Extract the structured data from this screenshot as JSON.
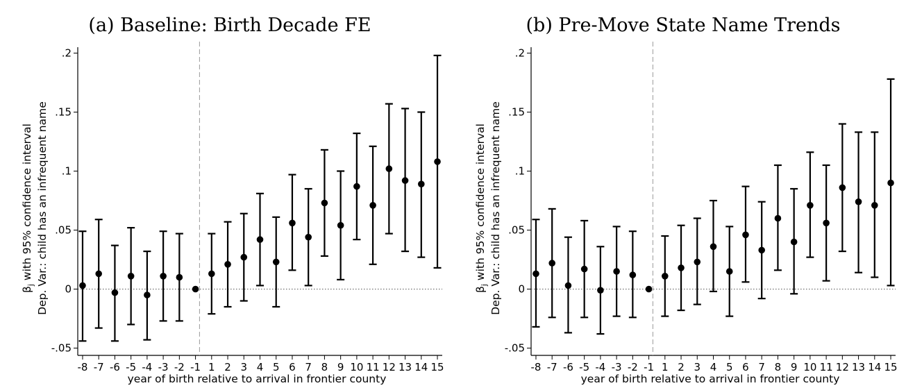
{
  "chart_data": [
    {
      "type": "scatter",
      "title": "(a) Baseline: Birth Decade FE",
      "xlabel": "year of birth relative to arrival in frontier county",
      "ylabel_line1": "β",
      "ylabel_sub": "j",
      "ylabel_line1_rest": " with 95% confidence interval",
      "ylabel_line2": "Dep. Var.: child has an infrequent name",
      "ylim": [
        -0.055,
        0.205
      ],
      "yticks": [
        -0.05,
        0,
        0.05,
        0.1,
        0.15,
        0.2
      ],
      "ytick_labels": [
        "-.05",
        "0",
        ".05",
        ".1",
        ".15",
        ".2"
      ],
      "x": [
        -8,
        -7,
        -6,
        -5,
        -4,
        -3,
        -2,
        -1,
        1,
        2,
        3,
        4,
        5,
        6,
        7,
        8,
        9,
        10,
        11,
        12,
        13,
        14,
        15
      ],
      "x_labels": [
        "-8",
        "-7",
        "-6",
        "-5",
        "-4",
        "-3",
        "-2",
        "-1",
        "1",
        "2",
        "3",
        "4",
        "5",
        "6",
        "7",
        "8",
        "9",
        "10",
        "11",
        "12",
        "13",
        "14",
        "15"
      ],
      "y": [
        0.003,
        0.013,
        -0.003,
        0.011,
        -0.005,
        0.011,
        0.01,
        0.0,
        0.013,
        0.021,
        0.027,
        0.042,
        0.023,
        0.056,
        0.044,
        0.073,
        0.054,
        0.087,
        0.071,
        0.102,
        0.092,
        0.089,
        0.108
      ],
      "ci_low": [
        -0.044,
        -0.033,
        -0.044,
        -0.03,
        -0.043,
        -0.027,
        -0.027,
        0.0,
        -0.021,
        -0.015,
        -0.01,
        0.003,
        -0.015,
        0.016,
        0.003,
        0.028,
        0.008,
        0.042,
        0.021,
        0.047,
        0.032,
        0.027,
        0.018
      ],
      "ci_high": [
        0.049,
        0.059,
        0.037,
        0.052,
        0.032,
        0.049,
        0.047,
        0.0,
        0.047,
        0.057,
        0.064,
        0.081,
        0.061,
        0.097,
        0.085,
        0.118,
        0.1,
        0.132,
        0.121,
        0.157,
        0.153,
        0.15,
        0.198
      ],
      "reference_line_x": -0.5,
      "zero_line": true,
      "grid": false
    },
    {
      "type": "scatter",
      "title": "(b) Pre-Move State Name Trends",
      "xlabel": "year of birth relative to arrival in frontier county",
      "ylabel_line1": "β",
      "ylabel_sub": "j",
      "ylabel_line1_rest": " with 95% confidence interval",
      "ylabel_line2": "Dep. Var.: child has an infrequent name",
      "ylim": [
        -0.055,
        0.205
      ],
      "yticks": [
        -0.05,
        0,
        0.05,
        0.1,
        0.15,
        0.2
      ],
      "ytick_labels": [
        "-.05",
        "0",
        ".05",
        ".1",
        ".15",
        ".2"
      ],
      "x": [
        -8,
        -7,
        -6,
        -5,
        -4,
        -3,
        -2,
        -1,
        1,
        2,
        3,
        4,
        5,
        6,
        7,
        8,
        9,
        10,
        11,
        12,
        13,
        14,
        15
      ],
      "x_labels": [
        "-8",
        "-7",
        "-6",
        "-5",
        "-4",
        "-3",
        "-2",
        "-1",
        "1",
        "2",
        "3",
        "4",
        "5",
        "6",
        "7",
        "8",
        "9",
        "10",
        "11",
        "12",
        "13",
        "14",
        "15"
      ],
      "y": [
        0.013,
        0.022,
        0.003,
        0.017,
        -0.001,
        0.015,
        0.012,
        0.0,
        0.011,
        0.018,
        0.023,
        0.036,
        0.015,
        0.046,
        0.033,
        0.06,
        0.04,
        0.071,
        0.056,
        0.086,
        0.074,
        0.071,
        0.09
      ],
      "ci_low": [
        -0.032,
        -0.024,
        -0.037,
        -0.024,
        -0.038,
        -0.023,
        -0.024,
        0.0,
        -0.023,
        -0.018,
        -0.013,
        -0.002,
        -0.023,
        0.006,
        -0.008,
        0.016,
        -0.004,
        0.027,
        0.007,
        0.032,
        0.014,
        0.01,
        0.003
      ],
      "ci_high": [
        0.059,
        0.068,
        0.044,
        0.058,
        0.036,
        0.053,
        0.049,
        0.0,
        0.045,
        0.054,
        0.06,
        0.075,
        0.053,
        0.087,
        0.074,
        0.105,
        0.085,
        0.116,
        0.105,
        0.14,
        0.133,
        0.133,
        0.178
      ],
      "reference_line_x": -0.5,
      "zero_line": true,
      "grid": false
    }
  ]
}
